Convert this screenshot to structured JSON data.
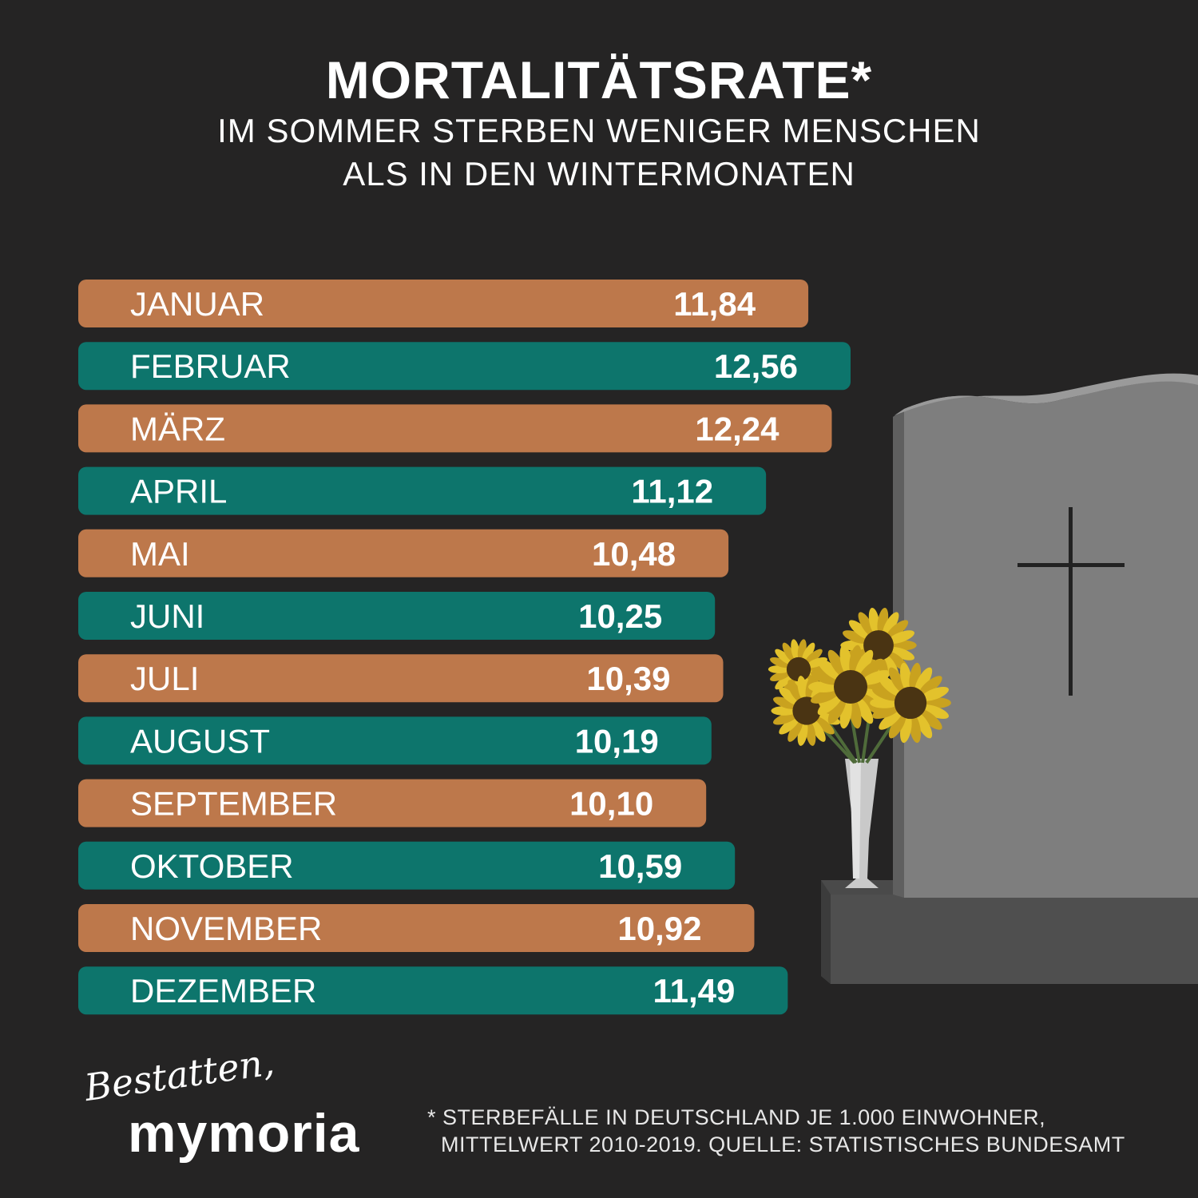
{
  "header": {
    "title": "MORTALITÄTSRATE*",
    "subtitle_line1": "IM SOMMER STERBEN WENIGER MENSCHEN",
    "subtitle_line2": "ALS IN DEN WINTERMONATEN"
  },
  "colors": {
    "background": "#252424",
    "bar_orange": "#bd784b",
    "bar_teal": "#0d756c",
    "text": "#ffffff"
  },
  "chart_data": {
    "type": "bar",
    "orientation": "horizontal",
    "categories": [
      "JANUAR",
      "FEBRUAR",
      "MÄRZ",
      "APRIL",
      "MAI",
      "JUNI",
      "JULI",
      "AUGUST",
      "SEPTEMBER",
      "OKTOBER",
      "NOVEMBER",
      "DEZEMBER"
    ],
    "value_labels": [
      "11,84",
      "12,56",
      "12,24",
      "11,12",
      "10,48",
      "10,25",
      "10,39",
      "10,19",
      "10,10",
      "10,59",
      "10,92",
      "11,49"
    ],
    "values": [
      11.84,
      12.56,
      12.24,
      11.12,
      10.48,
      10.25,
      10.39,
      10.19,
      10.1,
      10.59,
      10.92,
      11.49
    ],
    "bar_colors": [
      "orange",
      "teal",
      "orange",
      "teal",
      "orange",
      "teal",
      "orange",
      "teal",
      "orange",
      "teal",
      "orange",
      "teal"
    ],
    "grid": false,
    "legend": "none"
  },
  "illustration": {
    "description_icon": "gravestone-with-cross-icon",
    "flowers_icon": "sunflower-vase-icon"
  },
  "footer": {
    "logo_script": "Bestatten,",
    "logo_main": "mymoria",
    "footnote_line1": "* STERBEFÄLLE IN DEUTSCHLAND JE 1.000 EINWOHNER,",
    "footnote_line2": "MITTELWERT 2010-2019. QUELLE: STATISTISCHES BUNDESAMT"
  }
}
